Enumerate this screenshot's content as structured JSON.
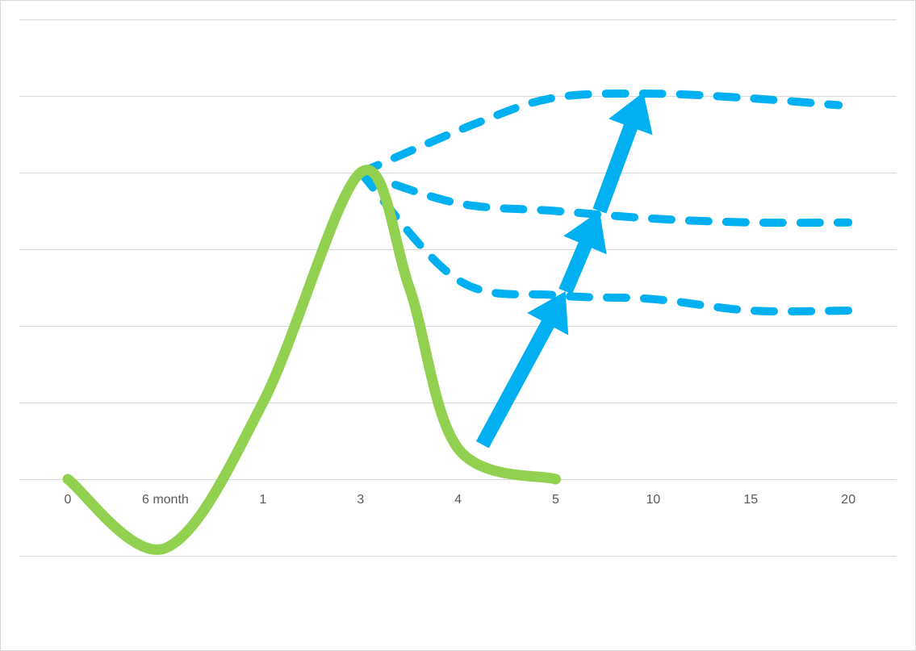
{
  "chart_data": {
    "type": "line",
    "categories": [
      "0",
      "6 month",
      "1",
      "3",
      "4",
      "5",
      "10",
      "15",
      "20"
    ],
    "ylim": [
      -1,
      6
    ],
    "grid": true,
    "series": [
      {
        "role": "actual",
        "style": "solid",
        "color": "#92d050",
        "points": [
          [
            0,
            0
          ],
          [
            1,
            -0.9
          ],
          [
            2,
            1
          ],
          [
            3,
            4
          ],
          [
            3.5,
            2.5
          ],
          [
            4,
            0.4
          ],
          [
            5,
            0
          ]
        ]
      },
      {
        "role": "projection-high",
        "style": "dashed",
        "color": "#00b0f0",
        "points": [
          [
            3,
            4
          ],
          [
            4.2,
            4.65
          ],
          [
            5,
            4.98
          ],
          [
            6,
            5.03
          ],
          [
            7,
            4.97
          ],
          [
            7.9,
            4.88
          ]
        ]
      },
      {
        "role": "projection-mid",
        "style": "dashed",
        "color": "#00b0f0",
        "points": [
          [
            3,
            4
          ],
          [
            4,
            3.6
          ],
          [
            5,
            3.5
          ],
          [
            6,
            3.4
          ],
          [
            7,
            3.35
          ],
          [
            8,
            3.35
          ]
        ]
      },
      {
        "role": "projection-low",
        "style": "dashed",
        "color": "#00b0f0",
        "points": [
          [
            3,
            4
          ],
          [
            4,
            2.6
          ],
          [
            5,
            2.4
          ],
          [
            6,
            2.35
          ],
          [
            7,
            2.2
          ],
          [
            8,
            2.2
          ]
        ]
      }
    ],
    "arrows": [
      {
        "from": [
          4.25,
          0.45
        ],
        "to": [
          5.1,
          2.45
        ]
      },
      {
        "from": [
          5.1,
          2.45
        ],
        "to": [
          5.45,
          3.5
        ]
      },
      {
        "from": [
          5.45,
          3.5
        ],
        "to": [
          5.9,
          5.05
        ]
      }
    ],
    "colors": {
      "actual": "#92d050",
      "projection": "#00b0f0",
      "gridline": "#d9d9d9",
      "tick_text": "#595959"
    }
  }
}
